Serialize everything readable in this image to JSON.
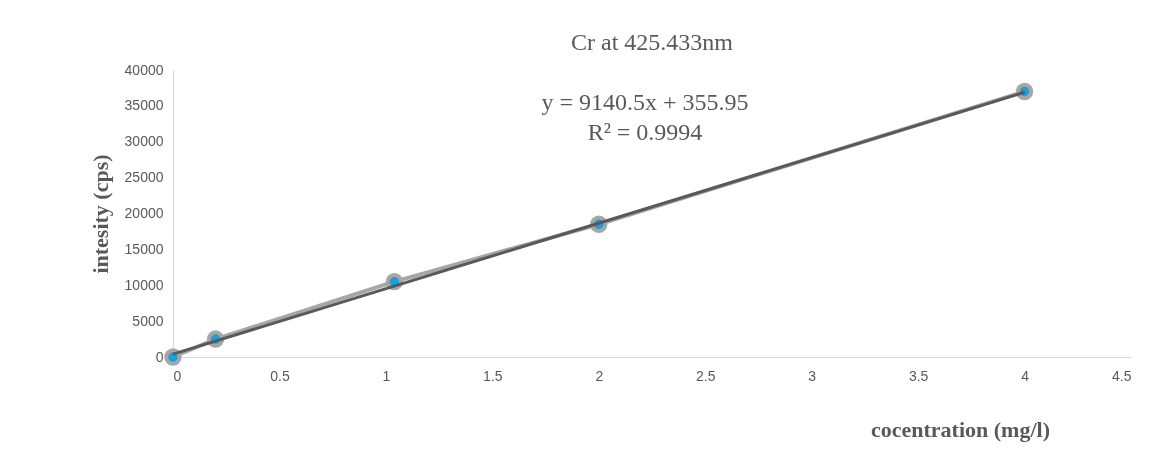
{
  "chart_data": {
    "type": "line",
    "title": "Cr at 425.433nm",
    "xlabel": "cocentration (mg/l)",
    "ylabel": "intesity (cps)",
    "annotations": [
      "y = 9140.5x + 355.95",
      "R² = 0.9994"
    ],
    "series": [
      {
        "color": "#a6a6a6",
        "marker": "circle",
        "x": [
          0,
          0.2,
          1.04,
          2,
          4
        ],
        "values": [
          0,
          2500,
          10500,
          18500,
          37000
        ]
      },
      {
        "color": "#595959",
        "marker": "none",
        "x": [
          0,
          4
        ],
        "values": [
          400,
          36900
        ]
      }
    ],
    "xlim": [
      0,
      4.5
    ],
    "xticks": [
      0,
      0.5,
      1,
      1.5,
      2,
      2.5,
      3,
      3.5,
      4,
      4.5
    ],
    "ylim": [
      0,
      40000
    ],
    "yticks": [
      0,
      5000,
      10000,
      15000,
      20000,
      25000,
      30000,
      35000,
      40000
    ],
    "grid": false
  }
}
